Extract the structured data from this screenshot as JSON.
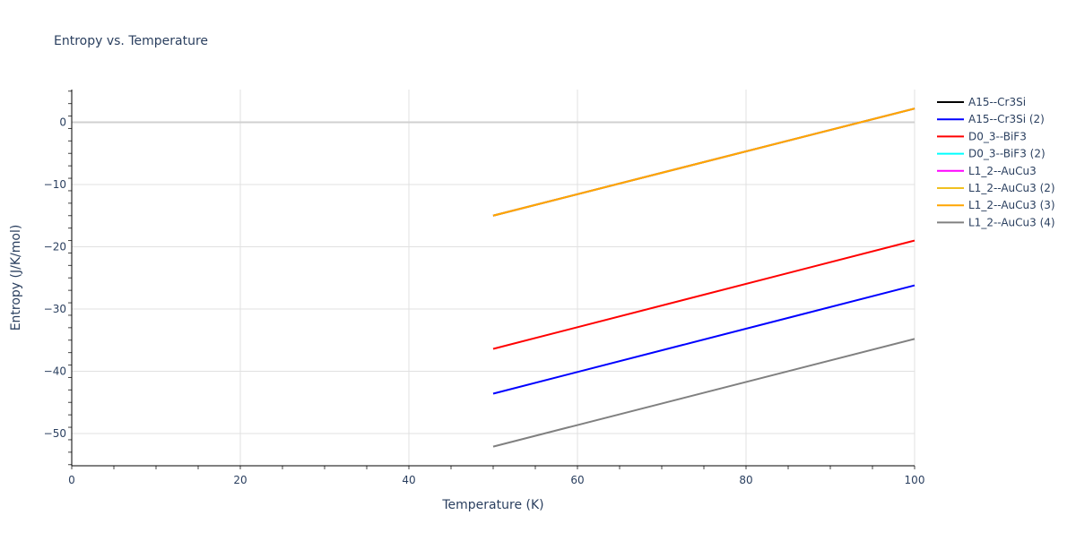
{
  "chart_data": {
    "type": "line",
    "title": "Entropy vs. Temperature",
    "xlabel": "Temperature (K)",
    "ylabel": "Entropy (J/K/mol)",
    "xlim": [
      0,
      100
    ],
    "ylim": [
      -55.2,
      5.3
    ],
    "xticks": [
      0,
      20,
      40,
      60,
      80,
      100
    ],
    "yticks": [
      0,
      -10,
      -20,
      -30,
      -40,
      -50
    ],
    "grid": true,
    "legend_position": "right",
    "series": [
      {
        "name": "A15--Cr3Si",
        "color": "#000000",
        "x": [
          50,
          100
        ],
        "values": [
          -15.0,
          2.2
        ]
      },
      {
        "name": "A15--Cr3Si (2)",
        "color": "#0000ff",
        "x": [
          50,
          100
        ],
        "values": [
          -43.6,
          -26.2
        ]
      },
      {
        "name": "D0_3--BiF3",
        "color": "#ff0000",
        "x": [
          50,
          100
        ],
        "values": [
          -36.4,
          -19.0
        ]
      },
      {
        "name": "D0_3--BiF3 (2)",
        "color": "#00ffff",
        "x": [
          50,
          100
        ],
        "values": [
          -15.0,
          2.2
        ]
      },
      {
        "name": "L1_2--AuCu3",
        "color": "#ff00ff",
        "x": [
          50,
          100
        ],
        "values": [
          -15.0,
          2.2
        ]
      },
      {
        "name": "L1_2--AuCu3 (2)",
        "color": "#f0c020",
        "x": [
          50,
          100
        ],
        "values": [
          -15.0,
          2.2
        ]
      },
      {
        "name": "L1_2--AuCu3 (3)",
        "color": "#ffa500",
        "x": [
          50,
          100
        ],
        "values": [
          -15.0,
          2.2
        ]
      },
      {
        "name": "L1_2--AuCu3 (4)",
        "color": "#808080",
        "x": [
          50,
          100
        ],
        "values": [
          -52.1,
          -34.8
        ]
      }
    ]
  }
}
